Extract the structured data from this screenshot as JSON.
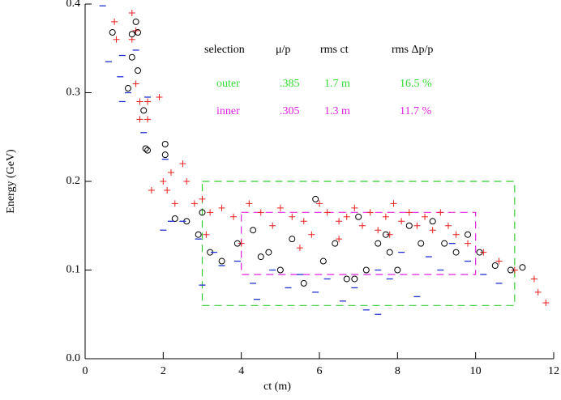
{
  "chart_data": {
    "type": "scatter",
    "xlabel": "ct (m)",
    "ylabel": "Energy (GeV)",
    "xlim": [
      0,
      12
    ],
    "ylim": [
      0,
      0.4
    ],
    "xticks": [
      0,
      2,
      4,
      6,
      8,
      10,
      12
    ],
    "yticks": [
      {
        "value": 0,
        "label": "0.0"
      },
      0.1,
      0.2,
      0.3,
      0.4
    ],
    "series": [
      {
        "color": "#e82020",
        "marker": "plus",
        "x": [
          0.75,
          0.8,
          1.2,
          1.3,
          1.2,
          1.3,
          1.4,
          1.6,
          1.6,
          1.9,
          1.4,
          1.7,
          2.0,
          2.1,
          2.2,
          2.5,
          2.6,
          2.3,
          2.8,
          3.0,
          3.2,
          3.5,
          3.8,
          4.2,
          4.5,
          4.8,
          5.0,
          5.3,
          5.6,
          5.8,
          6.0,
          6.2,
          6.5,
          6.7,
          6.9,
          7.1,
          7.3,
          7.5,
          7.7,
          7.9,
          8.1,
          8.3,
          8.5,
          8.7,
          8.9,
          9.1,
          9.3,
          9.5,
          9.8,
          10.2,
          10.6,
          11.0,
          11.5,
          11.6,
          11.8,
          3.1,
          4.0,
          6.5,
          7.8,
          5.5
        ],
        "values": [
          0.38,
          0.36,
          0.39,
          0.37,
          0.36,
          0.31,
          0.29,
          0.29,
          0.27,
          0.295,
          0.27,
          0.19,
          0.2,
          0.19,
          0.21,
          0.22,
          0.2,
          0.175,
          0.175,
          0.18,
          0.165,
          0.17,
          0.16,
          0.175,
          0.165,
          0.15,
          0.17,
          0.16,
          0.155,
          0.14,
          0.175,
          0.165,
          0.155,
          0.16,
          0.17,
          0.15,
          0.165,
          0.145,
          0.16,
          0.175,
          0.155,
          0.165,
          0.15,
          0.16,
          0.145,
          0.165,
          0.15,
          0.14,
          0.13,
          0.12,
          0.11,
          0.1,
          0.09,
          0.075,
          0.063,
          0.14,
          0.13,
          0.135,
          0.14,
          0.125
        ]
      },
      {
        "color": "#000000",
        "marker": "circle",
        "x": [
          0.7,
          1.2,
          1.3,
          1.35,
          1.2,
          1.35,
          1.1,
          1.5,
          1.55,
          1.6,
          2.05,
          2.05,
          2.3,
          2.6,
          2.9,
          3.0,
          3.2,
          3.5,
          3.9,
          4.3,
          4.7,
          5.0,
          5.3,
          5.6,
          5.9,
          6.1,
          6.4,
          6.7,
          7.0,
          7.2,
          7.5,
          7.7,
          8.0,
          8.3,
          8.6,
          8.9,
          9.2,
          9.5,
          9.8,
          10.1,
          10.5,
          10.9,
          11.2,
          4.5,
          6.9,
          7.8
        ],
        "values": [
          0.368,
          0.366,
          0.38,
          0.368,
          0.34,
          0.325,
          0.305,
          0.28,
          0.237,
          0.235,
          0.242,
          0.23,
          0.158,
          0.155,
          0.14,
          0.165,
          0.12,
          0.11,
          0.13,
          0.145,
          0.12,
          0.1,
          0.135,
          0.085,
          0.18,
          0.11,
          0.13,
          0.09,
          0.16,
          0.1,
          0.13,
          0.14,
          0.1,
          0.15,
          0.13,
          0.155,
          0.13,
          0.12,
          0.14,
          0.12,
          0.105,
          0.1,
          0.103,
          0.115,
          0.09,
          0.12
        ]
      },
      {
        "color": "#2030d0",
        "marker": "dash",
        "x": [
          0.45,
          0.6,
          0.95,
          0.9,
          1.3,
          0.95,
          1.1,
          1.5,
          1.6,
          2.05,
          2.2,
          2.0,
          2.5,
          2.9,
          3.3,
          3.5,
          3.0,
          3.9,
          4.3,
          4.8,
          5.2,
          5.5,
          5.9,
          6.2,
          6.6,
          6.9,
          7.2,
          7.5,
          7.8,
          8.1,
          8.5,
          8.8,
          9.1,
          9.4,
          9.8,
          10.2,
          10.6,
          4.4,
          7.5
        ],
        "values": [
          0.398,
          0.335,
          0.342,
          0.318,
          0.348,
          0.29,
          0.3,
          0.255,
          0.295,
          0.225,
          0.155,
          0.145,
          0.155,
          0.135,
          0.12,
          0.105,
          0.083,
          0.11,
          0.085,
          0.1,
          0.08,
          0.095,
          0.075,
          0.09,
          0.065,
          0.08,
          0.055,
          0.1,
          0.09,
          0.12,
          0.07,
          0.115,
          0.1,
          0.13,
          0.11,
          0.095,
          0.085,
          0.067,
          0.05
        ]
      }
    ],
    "boxes": [
      {
        "color": "#33cc33",
        "xlim": [
          3,
          11
        ],
        "ylim": [
          0.06,
          0.2
        ]
      },
      {
        "color": "#dd22dd",
        "xlim": [
          4,
          10
        ],
        "ylim": [
          0.095,
          0.165
        ]
      }
    ],
    "legend_table": {
      "header": [
        "selection",
        "μ/p",
        "rms ct",
        "rms Δp/p"
      ],
      "rows": [
        {
          "color": "#33dd33",
          "cells": [
            "outer",
            ".385",
            "1.7 m",
            "16.5 %"
          ]
        },
        {
          "color": "#dd22dd",
          "cells": [
            "inner",
            ".305",
            "1.3 m",
            "11.7 %"
          ]
        }
      ]
    }
  }
}
